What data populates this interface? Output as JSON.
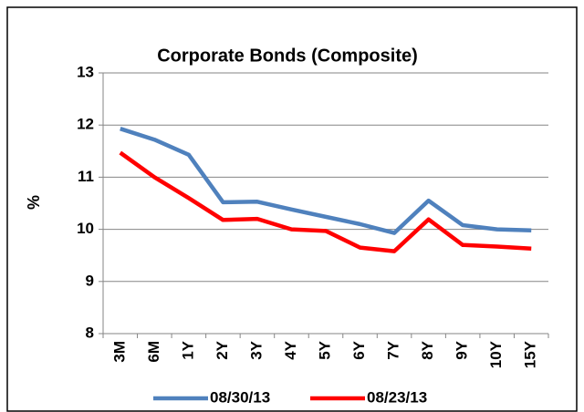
{
  "chart_data": {
    "type": "line",
    "title": "Corporate Bonds (Composite)",
    "y_label": "%",
    "categories": [
      "3M",
      "6M",
      "1Y",
      "2Y",
      "3Y",
      "4Y",
      "5Y",
      "6Y",
      "7Y",
      "8Y",
      "9Y",
      "10Y",
      "15Y"
    ],
    "series": [
      {
        "name": "08/30/13",
        "color": "#4f81bd",
        "values": [
          11.93,
          11.72,
          11.43,
          10.52,
          10.53,
          10.38,
          10.24,
          10.1,
          9.93,
          10.55,
          10.08,
          10.0,
          9.98
        ]
      },
      {
        "name": "08/23/13",
        "color": "#ff0000",
        "values": [
          11.47,
          11.0,
          10.6,
          10.18,
          10.2,
          10.0,
          9.97,
          9.65,
          9.58,
          10.19,
          9.7,
          9.67,
          9.63
        ]
      }
    ],
    "ylim": [
      8,
      13
    ],
    "yticks": [
      8,
      9,
      10,
      11,
      12,
      13
    ],
    "grid": true,
    "legend": "bottom"
  }
}
